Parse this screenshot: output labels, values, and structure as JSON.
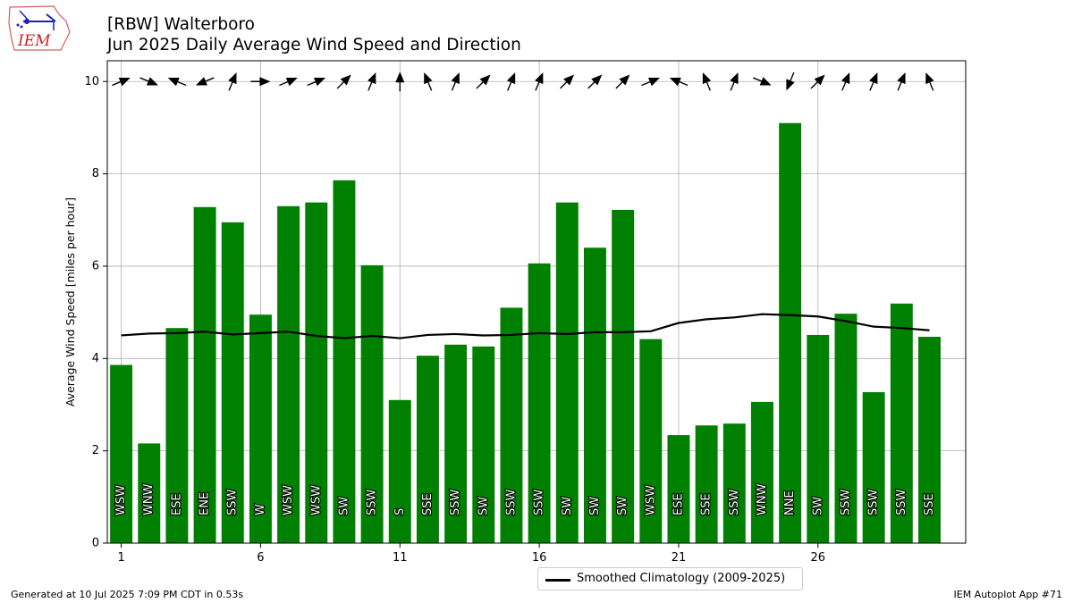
{
  "header": {
    "title_line1": "[RBW] Walterboro",
    "title_line2": "Jun 2025 Daily Average Wind Speed and Direction"
  },
  "logo": {
    "text": "IEM"
  },
  "footer": {
    "left": "Generated at 10 Jul 2025 7:09 PM CDT in 0.53s",
    "right": "IEM Autoplot App #71"
  },
  "legend": {
    "climatology_label": "Smoothed Climatology (2009-2025)"
  },
  "colors": {
    "bar": "#008000",
    "climatology_line": "#000000",
    "grid": "#b0b0b0",
    "arrow": "#000000"
  },
  "chart_data": {
    "type": "bar",
    "ylabel": "Average Wind Speed [miles per hour]",
    "xlabel": "",
    "ylim": [
      0,
      10.45
    ],
    "xlim": [
      0.5,
      31.3
    ],
    "yticks": [
      0,
      2,
      4,
      6,
      8,
      10
    ],
    "xticks": [
      1,
      6,
      11,
      16,
      21,
      26
    ],
    "grid": true,
    "legend_position": "bottom-center",
    "days": [
      1,
      2,
      3,
      4,
      5,
      6,
      7,
      8,
      9,
      10,
      11,
      12,
      13,
      14,
      15,
      16,
      17,
      18,
      19,
      20,
      21,
      22,
      23,
      24,
      25,
      26,
      27,
      28,
      29,
      30
    ],
    "values": [
      3.86,
      2.16,
      4.66,
      7.28,
      6.95,
      4.95,
      7.3,
      7.38,
      7.86,
      6.02,
      3.1,
      4.06,
      4.3,
      4.26,
      5.1,
      6.06,
      7.38,
      6.4,
      7.22,
      4.42,
      2.34,
      2.55,
      2.59,
      3.06,
      9.1,
      4.51,
      4.97,
      3.27,
      5.19,
      4.47
    ],
    "directions": [
      "WSW",
      "WNW",
      "ESE",
      "ENE",
      "SSW",
      "W",
      "WSW",
      "WSW",
      "SW",
      "SSW",
      "S",
      "SSE",
      "SSW",
      "SW",
      "SSW",
      "SSW",
      "SW",
      "SW",
      "SW",
      "WSW",
      "ESE",
      "SSE",
      "SSW",
      "WNW",
      "NNE",
      "SW",
      "SSW",
      "SSW",
      "SSW",
      "SSE"
    ],
    "series": [
      {
        "name": "Smoothed Climatology (2009-2025)",
        "type": "line",
        "values": [
          4.5,
          4.54,
          4.55,
          4.58,
          4.52,
          4.55,
          4.58,
          4.49,
          4.44,
          4.49,
          4.44,
          4.51,
          4.53,
          4.5,
          4.51,
          4.55,
          4.53,
          4.57,
          4.57,
          4.59,
          4.77,
          4.85,
          4.89,
          4.96,
          4.94,
          4.91,
          4.81,
          4.69,
          4.66,
          4.61
        ]
      }
    ]
  }
}
